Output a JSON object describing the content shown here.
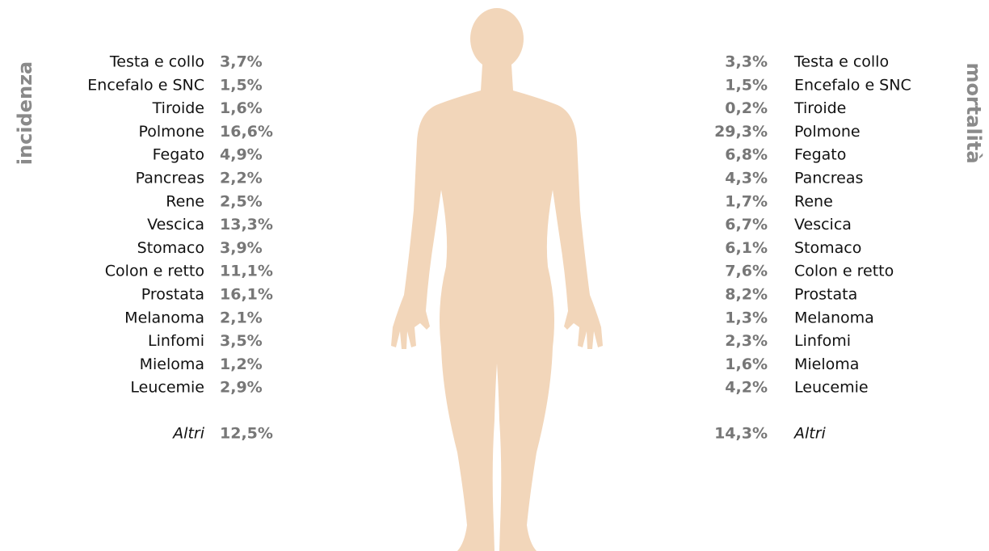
{
  "left": {
    "title": "incidenza",
    "rows": [
      {
        "label": "Testa e collo",
        "value": "3,7%"
      },
      {
        "label": "Encefalo e SNC",
        "value": "1,5%"
      },
      {
        "label": "Tiroide",
        "value": "1,6%"
      },
      {
        "label": "Polmone",
        "value": "16,6%"
      },
      {
        "label": "Fegato",
        "value": "4,9%"
      },
      {
        "label": "Pancreas",
        "value": "2,2%"
      },
      {
        "label": "Rene",
        "value": "2,5%"
      },
      {
        "label": "Vescica",
        "value": "13,3%"
      },
      {
        "label": "Stomaco",
        "value": "3,9%"
      },
      {
        "label": "Colon e retto",
        "value": "11,1%"
      },
      {
        "label": "Prostata",
        "value": "16,1%"
      },
      {
        "label": "Melanoma",
        "value": "2,1%"
      },
      {
        "label": "Linfomi",
        "value": "3,5%"
      },
      {
        "label": "Mieloma",
        "value": "1,2%"
      },
      {
        "label": "Leucemie",
        "value": "2,9%"
      }
    ],
    "other": {
      "label": "Altri",
      "value": "12,5%"
    }
  },
  "right": {
    "title": "mortalità",
    "rows": [
      {
        "label": "Testa e collo",
        "value": "3,3%"
      },
      {
        "label": "Encefalo e SNC",
        "value": "1,5%"
      },
      {
        "label": "Tiroide",
        "value": "0,2%"
      },
      {
        "label": "Polmone",
        "value": "29,3%"
      },
      {
        "label": "Fegato",
        "value": "6,8%"
      },
      {
        "label": "Pancreas",
        "value": "4,3%"
      },
      {
        "label": "Rene",
        "value": "1,7%"
      },
      {
        "label": "Vescica",
        "value": "6,7%"
      },
      {
        "label": "Stomaco",
        "value": "6,1%"
      },
      {
        "label": "Colon e retto",
        "value": "7,6%"
      },
      {
        "label": "Prostata",
        "value": "8,2%"
      },
      {
        "label": "Melanoma",
        "value": "1,3%"
      },
      {
        "label": "Linfomi",
        "value": "2,3%"
      },
      {
        "label": "Mieloma",
        "value": "1,6%"
      },
      {
        "label": "Leucemie",
        "value": "4,2%"
      }
    ],
    "other": {
      "label": "Altri",
      "value": "14,3%"
    }
  }
}
